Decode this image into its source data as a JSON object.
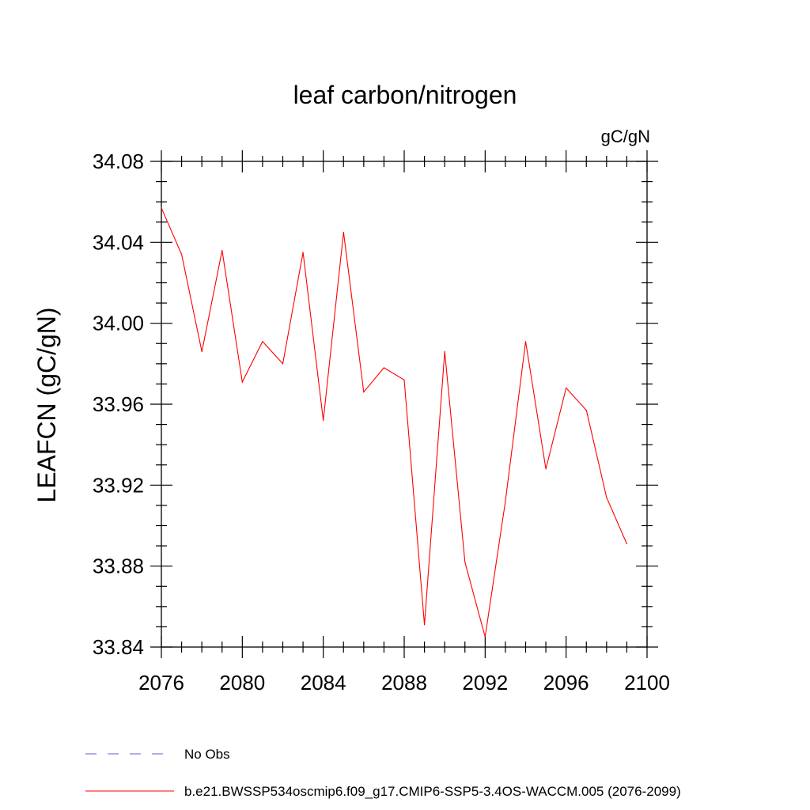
{
  "chart_data": {
    "type": "line",
    "title": "leaf carbon/nitrogen",
    "units": "gC/gN",
    "ylabel": "LEAFCN  (gC/gN)",
    "xlabel": "",
    "xlim": [
      2076,
      2100
    ],
    "ylim": [
      33.84,
      34.08
    ],
    "x_ticks": [
      2076,
      2080,
      2084,
      2088,
      2092,
      2096,
      2100
    ],
    "x_tick_labels": [
      "2076",
      "2080",
      "2084",
      "2088",
      "2092",
      "2096",
      "2100"
    ],
    "y_ticks": [
      33.84,
      33.88,
      33.92,
      33.96,
      34.0,
      34.04,
      34.08
    ],
    "y_tick_labels": [
      "33.84",
      "33.88",
      "33.92",
      "33.96",
      "34.00",
      "34.04",
      "34.08"
    ],
    "grid": false,
    "series": [
      {
        "name": "b.e21.BWSSP534oscmip6.f09_g17.CMIP6-SSP5-3.4OS-WACCM.005 (2076-2099)",
        "color": "#ff0000",
        "style": "solid",
        "x": [
          2076,
          2077,
          2078,
          2079,
          2080,
          2081,
          2082,
          2083,
          2084,
          2085,
          2086,
          2087,
          2088,
          2089,
          2090,
          2091,
          2092,
          2093,
          2094,
          2095,
          2096,
          2097,
          2098,
          2099
        ],
        "values": [
          34.057,
          34.034,
          33.986,
          34.036,
          33.971,
          33.991,
          33.98,
          34.035,
          33.952,
          34.045,
          33.966,
          33.978,
          33.972,
          33.851,
          33.986,
          33.882,
          33.845,
          33.912,
          33.991,
          33.928,
          33.968,
          33.957,
          33.914,
          33.891
        ]
      }
    ],
    "legend": [
      {
        "label": "No Obs",
        "color": "#6a5acd",
        "style": "dashed"
      },
      {
        "label": "b.e21.BWSSP534oscmip6.f09_g17.CMIP6-SSP5-3.4OS-WACCM.005 (2076-2099)",
        "color": "#ff0000",
        "style": "solid"
      }
    ],
    "legend_position": "bottom-left"
  }
}
